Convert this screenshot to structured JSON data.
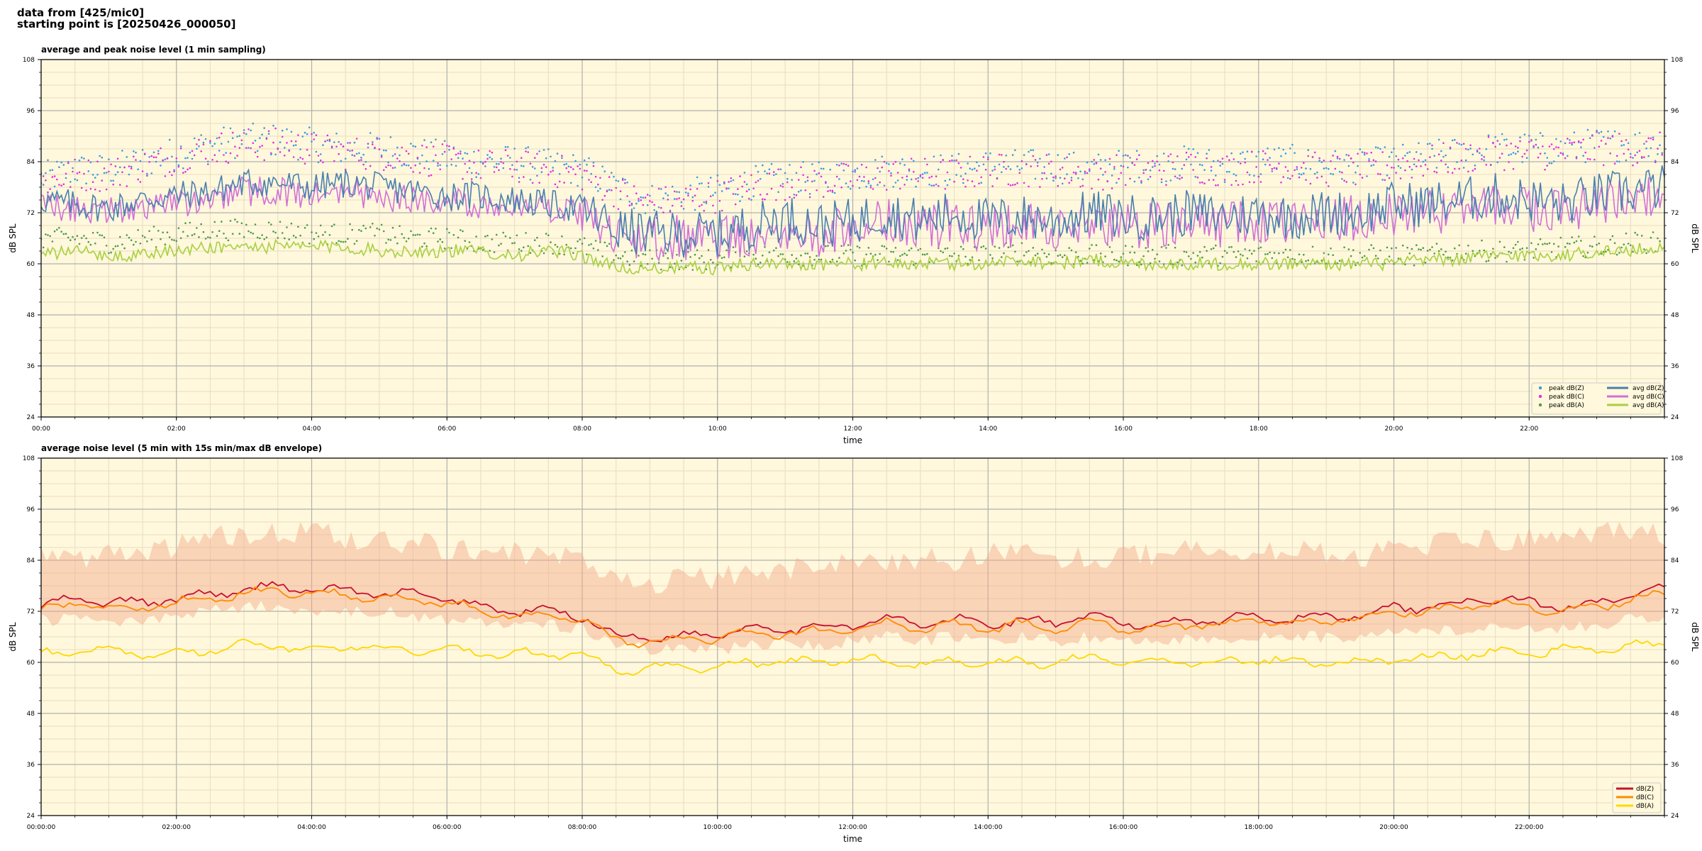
{
  "header": {
    "line1": "data from [425/mic0]",
    "line2": "starting point is [20250426_000050]"
  },
  "colors": {
    "plot_bg": "#fff8dc",
    "grid_major": "#b0b0b0",
    "grid_minor": "#e8dcc0",
    "peak_z": "#3b9ae0",
    "peak_c": "#e030e0",
    "peak_a": "#4a9a4a",
    "avg_z": "#4a7fb0",
    "avg_c": "#d070d8",
    "avg_a": "#a8d040",
    "envelope": "#f5a98a",
    "db_z": "#c8102e",
    "db_c": "#ff8c00",
    "db_a": "#ffd700"
  },
  "chart_data": [
    {
      "type": "line",
      "title": "average and peak noise level (1 min sampling)",
      "xlabel": "time",
      "ylabel": "dB SPL",
      "ylabel_right": "dB SPL",
      "xlim": [
        0,
        24
      ],
      "ylim": [
        24,
        108
      ],
      "yticks": [
        24,
        36,
        48,
        60,
        72,
        84,
        96,
        108
      ],
      "xtick_labels": [
        "00:00",
        "02:00",
        "04:00",
        "06:00",
        "08:00",
        "10:00",
        "12:00",
        "14:00",
        "16:00",
        "18:00",
        "20:00",
        "22:00"
      ],
      "grid": true,
      "legend_position": "bottom-right",
      "legend": [
        "peak dB(Z)",
        "peak dB(C)",
        "peak dB(A)",
        "avg dB(Z)",
        "avg dB(C)",
        "avg dB(A)"
      ],
      "x": [
        0,
        0.5,
        1,
        1.5,
        2,
        2.5,
        3,
        3.5,
        4,
        4.5,
        5,
        5.5,
        6,
        6.5,
        7,
        7.5,
        8,
        8.5,
        9,
        9.5,
        10,
        10.5,
        11,
        11.5,
        12,
        12.5,
        13,
        13.5,
        14,
        14.5,
        15,
        15.5,
        16,
        16.5,
        17,
        17.5,
        18,
        18.5,
        19,
        19.5,
        20,
        20.5,
        21,
        21.5,
        22,
        22.5,
        23,
        23.5,
        24
      ],
      "series": [
        {
          "name": "peak dB(Z)",
          "style": "dots",
          "values": [
            80,
            82,
            82,
            84,
            86,
            88,
            89,
            89,
            88,
            87,
            87,
            86,
            85,
            84,
            84,
            83,
            82,
            78,
            75,
            76,
            77,
            79,
            80,
            80,
            81,
            82,
            82,
            82,
            83,
            83,
            83,
            82,
            83,
            83,
            84,
            83,
            84,
            84,
            83,
            83,
            84,
            85,
            86,
            87,
            87,
            87,
            88,
            88,
            88
          ]
        },
        {
          "name": "peak dB(C)",
          "style": "dots",
          "values": [
            79,
            81,
            81,
            83,
            85,
            87,
            88,
            88,
            87,
            86,
            86,
            85,
            84,
            83,
            83,
            82,
            81,
            77,
            74,
            75,
            76,
            78,
            79,
            79,
            80,
            81,
            81,
            81,
            82,
            82,
            82,
            81,
            82,
            82,
            83,
            82,
            83,
            83,
            82,
            82,
            83,
            84,
            85,
            86,
            86,
            86,
            87,
            87,
            87
          ]
        },
        {
          "name": "peak dB(A)",
          "style": "dots",
          "values": [
            66,
            66,
            65,
            66,
            67,
            68,
            68,
            68,
            67,
            67,
            67,
            66,
            66,
            65,
            65,
            65,
            64,
            62,
            61,
            61,
            61,
            62,
            62,
            62,
            62,
            62,
            62,
            62,
            62,
            63,
            62,
            62,
            62,
            62,
            62,
            62,
            62,
            62,
            62,
            62,
            62,
            62,
            63,
            63,
            63,
            64,
            64,
            65,
            65
          ]
        },
        {
          "name": "avg dB(Z)",
          "style": "line",
          "values": [
            75,
            74,
            73,
            75,
            76,
            77,
            79,
            79,
            78,
            79,
            78,
            77,
            76,
            76,
            75,
            74,
            73,
            68,
            67,
            67,
            67,
            69,
            71,
            69,
            70,
            72,
            70,
            72,
            70,
            71,
            70,
            72,
            71,
            71,
            72,
            71,
            72,
            71,
            72,
            72,
            74,
            74,
            75,
            76,
            75,
            74,
            76,
            77,
            78
          ]
        },
        {
          "name": "avg dB(C)",
          "style": "line",
          "values": [
            73,
            73,
            72,
            74,
            74,
            75,
            77,
            77,
            76,
            77,
            76,
            75,
            75,
            74,
            74,
            73,
            71,
            66,
            66,
            66,
            66,
            67,
            69,
            67,
            68,
            70,
            68,
            70,
            68,
            69,
            68,
            70,
            69,
            69,
            70,
            69,
            70,
            69,
            70,
            71,
            72,
            72,
            73,
            74,
            73,
            72,
            74,
            75,
            76
          ]
        },
        {
          "name": "avg dB(A)",
          "style": "line",
          "values": [
            62,
            63,
            62,
            62,
            63,
            64,
            64,
            64,
            64,
            64,
            63,
            63,
            63,
            63,
            62,
            63,
            62,
            59,
            59,
            59,
            59,
            60,
            60,
            60,
            60,
            60,
            60,
            60,
            60,
            61,
            60,
            61,
            60,
            60,
            60,
            60,
            60,
            60,
            60,
            60,
            60,
            61,
            61,
            62,
            62,
            62,
            63,
            63,
            64
          ]
        }
      ]
    },
    {
      "type": "line",
      "title": "average noise level (5 min with 15s min/max dB envelope)",
      "xlabel": "time",
      "ylabel": "dB SPL",
      "ylabel_right": "dB SPL",
      "xlim": [
        0,
        24
      ],
      "ylim": [
        24,
        108
      ],
      "yticks": [
        24,
        36,
        48,
        60,
        72,
        84,
        96,
        108
      ],
      "xtick_labels": [
        "00:00:00",
        "02:00:00",
        "04:00:00",
        "06:00:00",
        "08:00:00",
        "10:00:00",
        "12:00:00",
        "14:00:00",
        "16:00:00",
        "18:00:00",
        "20:00:00",
        "22:00:00"
      ],
      "grid": true,
      "legend_position": "bottom-right",
      "legend": [
        "dB(Z)",
        "dB(C)",
        "dB(A)"
      ],
      "x": [
        0,
        0.5,
        1,
        1.5,
        2,
        2.5,
        3,
        3.5,
        4,
        4.5,
        5,
        5.5,
        6,
        6.5,
        7,
        7.5,
        8,
        8.5,
        9,
        9.5,
        10,
        10.5,
        11,
        11.5,
        12,
        12.5,
        13,
        13.5,
        14,
        14.5,
        15,
        15.5,
        16,
        16.5,
        17,
        17.5,
        18,
        18.5,
        19,
        19.5,
        20,
        20.5,
        21,
        21.5,
        22,
        22.5,
        23,
        23.5,
        24
      ],
      "envelope": {
        "max": [
          84,
          84,
          84,
          85,
          86,
          88,
          89,
          89,
          89,
          88,
          88,
          87,
          86,
          85,
          85,
          84,
          83,
          80,
          78,
          78,
          79,
          80,
          81,
          81,
          82,
          83,
          83,
          83,
          84,
          84,
          84,
          83,
          84,
          84,
          85,
          84,
          85,
          85,
          84,
          84,
          85,
          86,
          87,
          88,
          88,
          88,
          89,
          89,
          89
        ],
        "min": [
          70,
          70,
          69,
          70,
          71,
          72,
          73,
          73,
          72,
          72,
          72,
          71,
          70,
          70,
          69,
          69,
          68,
          64,
          63,
          63,
          63,
          64,
          65,
          64,
          65,
          66,
          65,
          66,
          65,
          66,
          65,
          66,
          65,
          65,
          66,
          65,
          66,
          66,
          66,
          66,
          67,
          67,
          68,
          69,
          68,
          68,
          69,
          70,
          71
        ]
      },
      "series": [
        {
          "name": "dB(Z)",
          "values": [
            73,
            75,
            74,
            74,
            75,
            76,
            77,
            78,
            77,
            77,
            76,
            76,
            75,
            73,
            72,
            72,
            71,
            66,
            66,
            66,
            67,
            68,
            68,
            68,
            69,
            70,
            69,
            70,
            69,
            70,
            69,
            71,
            69,
            69,
            70,
            70,
            71,
            70,
            71,
            71,
            73,
            73,
            74,
            75,
            74,
            73,
            74,
            76,
            77
          ]
        },
        {
          "name": "dB(C)",
          "values": [
            72,
            74,
            73,
            73,
            74,
            75,
            76,
            77,
            76,
            76,
            75,
            75,
            74,
            72,
            71,
            71,
            70,
            65,
            65,
            65,
            66,
            67,
            67,
            67,
            68,
            69,
            68,
            69,
            68,
            69,
            68,
            70,
            68,
            68,
            69,
            69,
            70,
            69,
            70,
            70,
            72,
            72,
            73,
            74,
            73,
            72,
            73,
            75,
            76
          ]
        },
        {
          "name": "dB(A)",
          "values": [
            62,
            63,
            63,
            62,
            62,
            63,
            64,
            64,
            63,
            64,
            63,
            63,
            63,
            62,
            62,
            62,
            62,
            58,
            59,
            59,
            59,
            60,
            60,
            60,
            61,
            60,
            60,
            60,
            60,
            60,
            60,
            61,
            60,
            60,
            60,
            60,
            61,
            60,
            60,
            60,
            61,
            61,
            62,
            62,
            62,
            63,
            63,
            64,
            64
          ]
        }
      ]
    }
  ]
}
